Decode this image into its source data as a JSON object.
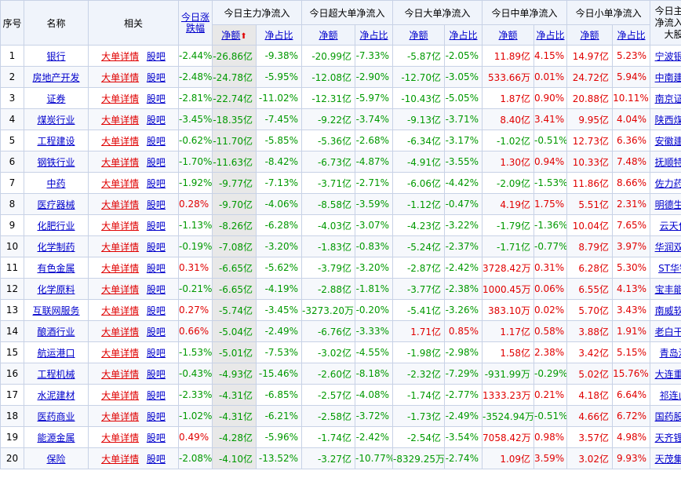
{
  "headers": {
    "index": "序号",
    "name": "名称",
    "related": "相关",
    "change": "今日涨跌幅",
    "main": "今日主力净流入",
    "super": "今日超大单净流入",
    "large": "今日大单净流入",
    "medium": "今日中单净流入",
    "small": "今日小单净流入",
    "top_stock": "今日主力净流入最大股",
    "amount": "净额",
    "ratio": "净占比",
    "sort_arrow": "⬆"
  },
  "link_labels": {
    "detail": "大单详情",
    "bar": "股吧"
  },
  "rows": [
    {
      "i": "1",
      "name": "银行",
      "chg": "-2.44%",
      "m": "-26.86亿",
      "mr": "-9.38%",
      "s": "-20.99亿",
      "sr": "-7.33%",
      "l": "-5.87亿",
      "lr": "-2.05%",
      "md": "11.89亿",
      "mdr": "4.15%",
      "sm": "14.97亿",
      "smr": "5.23%",
      "top": "宁波银行"
    },
    {
      "i": "2",
      "name": "房地产开发",
      "chg": "-2.48%",
      "m": "-24.78亿",
      "mr": "-5.95%",
      "s": "-12.08亿",
      "sr": "-2.90%",
      "l": "-12.70亿",
      "lr": "-3.05%",
      "md": "533.66万",
      "mdr": "0.01%",
      "sm": "24.72亿",
      "smr": "5.94%",
      "top": "中南建设"
    },
    {
      "i": "3",
      "name": "证券",
      "chg": "-2.81%",
      "m": "-22.74亿",
      "mr": "-11.02%",
      "s": "-12.31亿",
      "sr": "-5.97%",
      "l": "-10.43亿",
      "lr": "-5.05%",
      "md": "1.87亿",
      "mdr": "0.90%",
      "sm": "20.88亿",
      "smr": "10.11%",
      "top": "南京证券"
    },
    {
      "i": "4",
      "name": "煤炭行业",
      "chg": "-3.45%",
      "m": "-18.35亿",
      "mr": "-7.45%",
      "s": "-9.22亿",
      "sr": "-3.74%",
      "l": "-9.13亿",
      "lr": "-3.71%",
      "md": "8.40亿",
      "mdr": "3.41%",
      "sm": "9.95亿",
      "smr": "4.04%",
      "top": "陕西煤业"
    },
    {
      "i": "5",
      "name": "工程建设",
      "chg": "-0.62%",
      "m": "-11.70亿",
      "mr": "-5.85%",
      "s": "-5.36亿",
      "sr": "-2.68%",
      "l": "-6.34亿",
      "lr": "-3.17%",
      "md": "-1.02亿",
      "mdr": "-0.51%",
      "sm": "12.73亿",
      "smr": "6.36%",
      "top": "安徽建工"
    },
    {
      "i": "6",
      "name": "钢铁行业",
      "chg": "-1.70%",
      "m": "-11.63亿",
      "mr": "-8.42%",
      "s": "-6.73亿",
      "sr": "-4.87%",
      "l": "-4.91亿",
      "lr": "-3.55%",
      "md": "1.30亿",
      "mdr": "0.94%",
      "sm": "10.33亿",
      "smr": "7.48%",
      "top": "抚顺特钢"
    },
    {
      "i": "7",
      "name": "中药",
      "chg": "-1.92%",
      "m": "-9.77亿",
      "mr": "-7.13%",
      "s": "-3.71亿",
      "sr": "-2.71%",
      "l": "-6.06亿",
      "lr": "-4.42%",
      "md": "-2.09亿",
      "mdr": "-1.53%",
      "sm": "11.86亿",
      "smr": "8.66%",
      "top": "佐力药业"
    },
    {
      "i": "8",
      "name": "医疗器械",
      "chg": "0.28%",
      "m": "-9.70亿",
      "mr": "-4.06%",
      "s": "-8.58亿",
      "sr": "-3.59%",
      "l": "-1.12亿",
      "lr": "-0.47%",
      "md": "4.19亿",
      "mdr": "1.75%",
      "sm": "5.51亿",
      "smr": "2.31%",
      "top": "明德生物"
    },
    {
      "i": "9",
      "name": "化肥行业",
      "chg": "-1.13%",
      "m": "-8.26亿",
      "mr": "-6.28%",
      "s": "-4.03亿",
      "sr": "-3.07%",
      "l": "-4.23亿",
      "lr": "-3.22%",
      "md": "-1.79亿",
      "mdr": "-1.36%",
      "sm": "10.04亿",
      "smr": "7.65%",
      "top": "云天化"
    },
    {
      "i": "10",
      "name": "化学制药",
      "chg": "-0.19%",
      "m": "-7.08亿",
      "mr": "-3.20%",
      "s": "-1.83亿",
      "sr": "-0.83%",
      "l": "-5.24亿",
      "lr": "-2.37%",
      "md": "-1.71亿",
      "mdr": "-0.77%",
      "sm": "8.79亿",
      "smr": "3.97%",
      "top": "华润双鹤"
    },
    {
      "i": "11",
      "name": "有色金属",
      "chg": "0.31%",
      "m": "-6.65亿",
      "mr": "-5.62%",
      "s": "-3.79亿",
      "sr": "-3.20%",
      "l": "-2.87亿",
      "lr": "-2.42%",
      "md": "3728.42万",
      "mdr": "0.31%",
      "sm": "6.28亿",
      "smr": "5.30%",
      "top": "ST华钰"
    },
    {
      "i": "12",
      "name": "化学原料",
      "chg": "-0.21%",
      "m": "-6.65亿",
      "mr": "-4.19%",
      "s": "-2.88亿",
      "sr": "-1.81%",
      "l": "-3.77亿",
      "lr": "-2.38%",
      "md": "1000.45万",
      "mdr": "0.06%",
      "sm": "6.55亿",
      "smr": "4.13%",
      "top": "宝丰能源"
    },
    {
      "i": "13",
      "name": "互联网服务",
      "chg": "0.27%",
      "m": "-5.74亿",
      "mr": "-3.45%",
      "s": "-3273.20万",
      "sr": "-0.20%",
      "l": "-5.41亿",
      "lr": "-3.26%",
      "md": "383.10万",
      "mdr": "0.02%",
      "sm": "5.70亿",
      "smr": "3.43%",
      "top": "南威软件"
    },
    {
      "i": "14",
      "name": "酿酒行业",
      "chg": "0.66%",
      "m": "-5.04亿",
      "mr": "-2.49%",
      "s": "-6.76亿",
      "sr": "-3.33%",
      "l": "1.71亿",
      "lr": "0.85%",
      "md": "1.17亿",
      "mdr": "0.58%",
      "sm": "3.88亿",
      "smr": "1.91%",
      "top": "老白干酒"
    },
    {
      "i": "15",
      "name": "航运港口",
      "chg": "-1.53%",
      "m": "-5.01亿",
      "mr": "-7.53%",
      "s": "-3.02亿",
      "sr": "-4.55%",
      "l": "-1.98亿",
      "lr": "-2.98%",
      "md": "1.58亿",
      "mdr": "2.38%",
      "sm": "3.42亿",
      "smr": "5.15%",
      "top": "青岛港"
    },
    {
      "i": "16",
      "name": "工程机械",
      "chg": "-0.43%",
      "m": "-4.93亿",
      "mr": "-15.46%",
      "s": "-2.60亿",
      "sr": "-8.18%",
      "l": "-2.32亿",
      "lr": "-7.29%",
      "md": "-931.99万",
      "mdr": "-0.29%",
      "sm": "5.02亿",
      "smr": "15.76%",
      "top": "大连重工"
    },
    {
      "i": "17",
      "name": "水泥建材",
      "chg": "-2.33%",
      "m": "-4.31亿",
      "mr": "-6.85%",
      "s": "-2.57亿",
      "sr": "-4.08%",
      "l": "-1.74亿",
      "lr": "-2.77%",
      "md": "1333.23万",
      "mdr": "0.21%",
      "sm": "4.18亿",
      "smr": "6.64%",
      "top": "祁连山"
    },
    {
      "i": "18",
      "name": "医药商业",
      "chg": "-1.02%",
      "m": "-4.31亿",
      "mr": "-6.21%",
      "s": "-2.58亿",
      "sr": "-3.72%",
      "l": "-1.73亿",
      "lr": "-2.49%",
      "md": "-3524.94万",
      "mdr": "-0.51%",
      "sm": "4.66亿",
      "smr": "6.72%",
      "top": "国药股份"
    },
    {
      "i": "19",
      "name": "能源金属",
      "chg": "0.49%",
      "m": "-4.28亿",
      "mr": "-5.96%",
      "s": "-1.74亿",
      "sr": "-2.42%",
      "l": "-2.54亿",
      "lr": "-3.54%",
      "md": "7058.42万",
      "mdr": "0.98%",
      "sm": "3.57亿",
      "smr": "4.98%",
      "top": "天齐锂业"
    },
    {
      "i": "20",
      "name": "保险",
      "chg": "-2.08%",
      "m": "-4.10亿",
      "mr": "-13.52%",
      "s": "-3.27亿",
      "sr": "-10.77%",
      "l": "-8329.25万",
      "lr": "-2.74%",
      "md": "1.09亿",
      "mdr": "3.59%",
      "sm": "3.02亿",
      "smr": "9.93%",
      "top": "天茂集团"
    }
  ]
}
